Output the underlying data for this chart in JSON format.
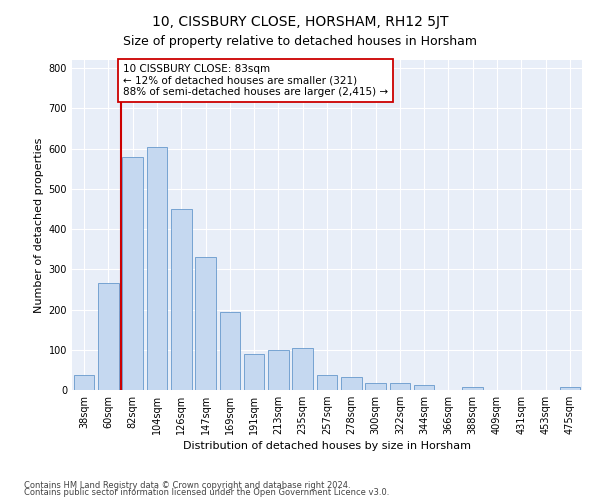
{
  "title": "10, CISSBURY CLOSE, HORSHAM, RH12 5JT",
  "subtitle": "Size of property relative to detached houses in Horsham",
  "xlabel": "Distribution of detached houses by size in Horsham",
  "ylabel": "Number of detached properties",
  "footnote1": "Contains HM Land Registry data © Crown copyright and database right 2024.",
  "footnote2": "Contains public sector information licensed under the Open Government Licence v3.0.",
  "categories": [
    "38sqm",
    "60sqm",
    "82sqm",
    "104sqm",
    "126sqm",
    "147sqm",
    "169sqm",
    "191sqm",
    "213sqm",
    "235sqm",
    "257sqm",
    "278sqm",
    "300sqm",
    "322sqm",
    "344sqm",
    "366sqm",
    "388sqm",
    "409sqm",
    "431sqm",
    "453sqm",
    "475sqm"
  ],
  "values": [
    37,
    265,
    580,
    605,
    450,
    330,
    195,
    90,
    100,
    105,
    37,
    32,
    17,
    17,
    12,
    0,
    7,
    0,
    0,
    0,
    8
  ],
  "bar_color": "#c5d8f0",
  "bar_edge_color": "#6699cc",
  "property_line_index": 2,
  "property_line_color": "#cc0000",
  "annotation_line1": "10 CISSBURY CLOSE: 83sqm",
  "annotation_line2": "← 12% of detached houses are smaller (321)",
  "annotation_line3": "88% of semi-detached houses are larger (2,415) →",
  "annotation_box_facecolor": "#ffffff",
  "annotation_box_edgecolor": "#cc0000",
  "ylim": [
    0,
    820
  ],
  "yticks": [
    0,
    100,
    200,
    300,
    400,
    500,
    600,
    700,
    800
  ],
  "background_color": "#ffffff",
  "axes_background": "#e8eef8",
  "grid_color": "#ffffff",
  "title_fontsize": 10,
  "subtitle_fontsize": 9,
  "tick_fontsize": 7,
  "ylabel_fontsize": 8,
  "xlabel_fontsize": 8,
  "footnote_fontsize": 6,
  "annotation_fontsize": 7.5
}
